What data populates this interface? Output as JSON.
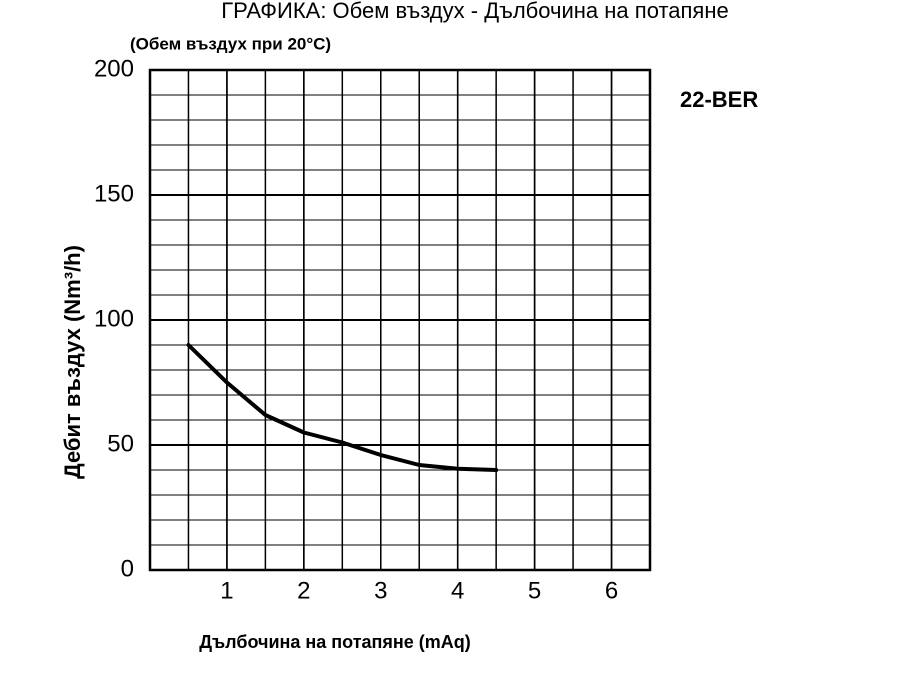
{
  "chart_data": {
    "type": "line",
    "title": "ГРАФИКА: Обем въздух - Дълбочина на потапяне",
    "subtitle": "(Обем въздух при 20°C)",
    "annotation": "22-BER",
    "x_label": "Дълбочина на потапяне (mAq)",
    "y_label": "Дебит въздух (Nm³/h)",
    "x": [
      0.5,
      1,
      1.5,
      2,
      2.5,
      3,
      3.5,
      4,
      4.5
    ],
    "series": [
      {
        "color": "#000000",
        "values": [
          90,
          75,
          62,
          55,
          51,
          46,
          42,
          40.5,
          40
        ]
      }
    ],
    "xlim": [
      0,
      6.5
    ],
    "xticks": [
      1,
      2,
      3,
      4,
      5,
      6
    ],
    "x_minor_ticks": [
      0.5,
      1,
      1.5,
      2,
      2.5,
      3,
      3.5,
      4,
      4.5,
      5,
      5.5,
      6
    ],
    "ylim": [
      0,
      200
    ],
    "yticks": [
      0,
      50,
      100,
      150,
      200
    ],
    "y_minor_ticks": [
      10,
      20,
      30,
      40,
      60,
      70,
      80,
      90,
      110,
      120,
      130,
      140,
      160,
      170,
      180,
      190
    ],
    "grid": true
  }
}
